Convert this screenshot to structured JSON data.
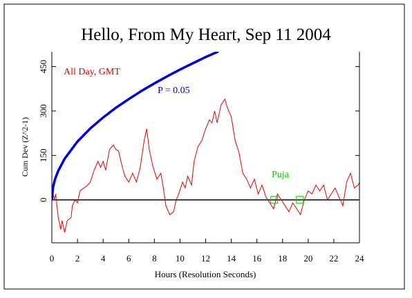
{
  "chart_data": {
    "type": "line",
    "title": "Hello, From My Heart, Sep 11 2004",
    "xlabel": "Hours (Resolution Seconds)",
    "ylabel": "Cum Dev (Z^2-1)",
    "annotations": [
      {
        "text": "All Day, GMT",
        "color": "#e00000"
      },
      {
        "text": "P = 0.05",
        "color": "#0000cc"
      },
      {
        "text": "Puja",
        "color": "#00cc00"
      }
    ],
    "xlim": [
      0,
      24
    ],
    "ylim": [
      -145,
      500
    ],
    "xticks": [
      0,
      2,
      4,
      6,
      8,
      10,
      12,
      14,
      16,
      18,
      20,
      22,
      24
    ],
    "yticks": [
      0,
      150,
      300,
      450
    ],
    "reference_line": 0,
    "series": [
      {
        "color": "#e00000",
        "x": [
          0,
          0.2,
          0.3,
          0.5,
          0.7,
          0.8,
          1.0,
          1.2,
          1.5,
          1.6,
          1.8,
          2.0,
          2.2,
          2.5,
          2.8,
          3.0,
          3.3,
          3.6,
          3.8,
          4.0,
          4.2,
          4.5,
          4.8,
          5.0,
          5.2,
          5.5,
          5.7,
          6.0,
          6.3,
          6.6,
          6.9,
          7.2,
          7.4,
          7.6,
          7.9,
          8.2,
          8.5,
          8.7,
          8.9,
          9.2,
          9.5,
          9.7,
          9.9,
          10.2,
          10.4,
          10.6,
          10.9,
          11.1,
          11.4,
          11.7,
          12.0,
          12.3,
          12.5,
          12.7,
          12.9,
          13.2,
          13.5,
          13.7,
          14.0,
          14.3,
          14.6,
          14.9,
          15.2,
          15.5,
          15.8,
          16.1,
          16.4,
          16.7,
          17.0,
          17.3,
          17.6,
          17.9,
          18.2,
          18.5,
          18.8,
          19.1,
          19.4,
          19.7,
          20.0,
          20.3,
          20.6,
          20.9,
          21.2,
          21.5,
          21.8,
          22.1,
          22.4,
          22.7,
          23.0,
          23.3,
          23.6,
          23.9,
          24
        ],
        "values": [
          40,
          0,
          20,
          -60,
          -100,
          -70,
          -110,
          -70,
          -60,
          -20,
          0,
          -10,
          30,
          40,
          50,
          60,
          100,
          130,
          110,
          130,
          100,
          170,
          185,
          170,
          165,
          110,
          80,
          60,
          90,
          60,
          110,
          200,
          240,
          170,
          110,
          70,
          90,
          40,
          -20,
          -50,
          -40,
          0,
          20,
          60,
          40,
          80,
          50,
          130,
          180,
          200,
          240,
          270,
          260,
          300,
          260,
          320,
          340,
          310,
          280,
          200,
          160,
          90,
          70,
          40,
          70,
          20,
          50,
          10,
          -10,
          -30,
          20,
          0,
          -20,
          -40,
          -10,
          -30,
          -50,
          0,
          30,
          20,
          50,
          30,
          50,
          0,
          20,
          40,
          10,
          -20,
          60,
          90,
          40,
          50,
          60
        ]
      },
      {
        "color": "#0000dd",
        "x": [
          0,
          0.1,
          0.25,
          0.5,
          1,
          2,
          3,
          4,
          5,
          6,
          7,
          8,
          9,
          10,
          11,
          12,
          13
        ],
        "values": [
          0,
          44,
          70,
          98,
          139,
          197,
          241,
          278,
          311,
          340,
          368,
          393,
          417,
          440,
          461,
          482,
          501
        ]
      }
    ],
    "markers": {
      "color": "#00cc00",
      "x": [
        17.35,
        19.35
      ],
      "values": [
        0,
        0
      ]
    }
  }
}
